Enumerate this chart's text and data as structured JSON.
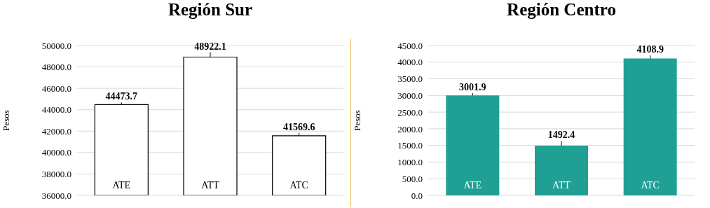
{
  "chart_data": [
    {
      "type": "bar",
      "title": "Región Sur",
      "ylabel": "Pesos",
      "categories": [
        "ATE",
        "ATT",
        "ATC"
      ],
      "values": [
        44473.7,
        48922.1,
        41569.6
      ],
      "color": "#ffffff",
      "errors": [
        [
          44473.7,
          44680
        ],
        [
          48922.1,
          49370
        ],
        [
          41569.6,
          41850
        ]
      ],
      "data_labels": true,
      "grid": "y",
      "ylim": [
        36000,
        50000
      ],
      "yticks": [
        {
          "value": 36000,
          "label": "36000.0"
        },
        {
          "value": 38000,
          "label": "38000.0"
        },
        {
          "value": 40000,
          "label": "40000.0"
        },
        {
          "value": 42000,
          "label": "42000.0"
        },
        {
          "value": 44000,
          "label": "44000.0"
        },
        {
          "value": 46000,
          "label": "46000.0"
        },
        {
          "value": 48000,
          "label": "48000.0"
        },
        {
          "value": 50000,
          "label": "50000.0"
        }
      ]
    },
    {
      "type": "bar",
      "title": "Región Centro",
      "ylabel": "Pesos",
      "categories": [
        "ATE",
        "ATT",
        "ATC"
      ],
      "values": [
        3001.9,
        1492.4,
        4108.9
      ],
      "color": "#20a094",
      "errors": [
        [
          3001.9,
          3070
        ],
        [
          1492.4,
          1630
        ],
        [
          4108.9,
          4205
        ]
      ],
      "data_labels": true,
      "grid": "y",
      "ylim": [
        0,
        4500
      ],
      "yticks": [
        {
          "value": 0,
          "label": "0.0"
        },
        {
          "value": 500,
          "label": "500.0"
        },
        {
          "value": 1000,
          "label": "1000.0"
        },
        {
          "value": 1500,
          "label": "1500.0"
        },
        {
          "value": 2000,
          "label": "2000.0"
        },
        {
          "value": 2500,
          "label": "2500.0"
        },
        {
          "value": 3000,
          "label": "3000.0"
        },
        {
          "value": 3500,
          "label": "3500.0"
        },
        {
          "value": 4000,
          "label": "4000.0"
        },
        {
          "value": 4500,
          "label": "4500.0"
        }
      ]
    }
  ]
}
